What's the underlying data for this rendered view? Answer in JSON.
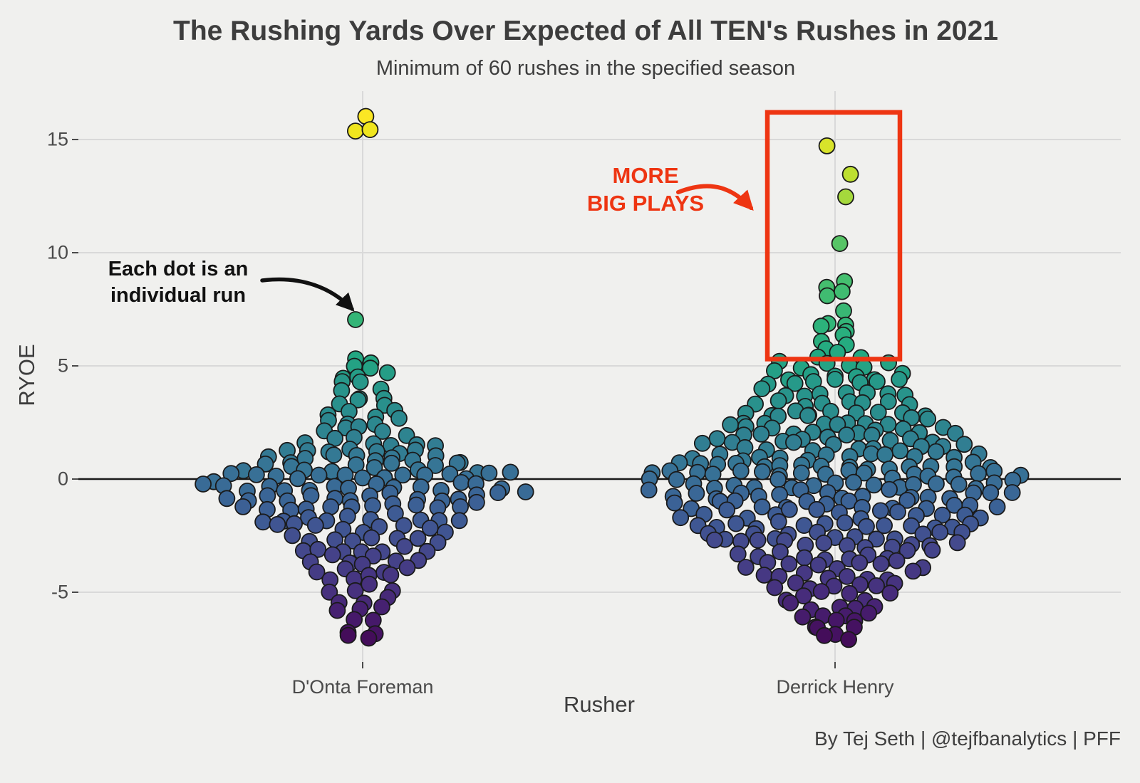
{
  "header": {
    "title": "The Rushing Yards Over Expected of All TEN's Rushes in 2021",
    "subtitle": "Minimum of 60 rushes in the specified season"
  },
  "caption": "By Tej Seth | @tejfbanalytics | PFF",
  "annotations": {
    "dot_note_line1": "Each dot is an",
    "dot_note_line2": "individual run",
    "big_plays_line1": "MORE",
    "big_plays_line2": "BIG PLAYS"
  },
  "axes": {
    "y_label": "RYOE",
    "x_label": "Rusher",
    "y_ticks": [
      "15",
      "10",
      "5",
      "0",
      "-5"
    ],
    "x_categories": [
      "D'Onta Foreman",
      "Derrick Henry"
    ]
  },
  "colors": {
    "background": "#f0f0ee",
    "gridline": "#d9d9d9",
    "zero_line": "#1a1a1a",
    "dot_stroke": "#1a1a1a",
    "accent_red": "#ee3512",
    "title_text": "#3d3d3d",
    "tick_text": "#4a4a4a",
    "annotation_black": "#111111",
    "viridis_stops": [
      [
        -7.3,
        "#440a57"
      ],
      [
        -6.2,
        "#46196a"
      ],
      [
        -5.0,
        "#472f7d"
      ],
      [
        -4.0,
        "#453b85"
      ],
      [
        -3.0,
        "#44498c"
      ],
      [
        -2.0,
        "#3f5793"
      ],
      [
        -1.0,
        "#3b6396"
      ],
      [
        0.0,
        "#386f96"
      ],
      [
        1.0,
        "#337a94"
      ],
      [
        2.0,
        "#2e8390"
      ],
      [
        3.0,
        "#2a8d8d"
      ],
      [
        4.0,
        "#27968a"
      ],
      [
        4.7,
        "#24a085"
      ],
      [
        5.5,
        "#23a981"
      ],
      [
        6.5,
        "#2bb17c"
      ],
      [
        7.5,
        "#3ab873"
      ],
      [
        8.6,
        "#45bf6f"
      ],
      [
        10.2,
        "#57c466"
      ],
      [
        12.4,
        "#a5d93c"
      ],
      [
        13.5,
        "#bddf30"
      ],
      [
        14.6,
        "#d8e32a"
      ],
      [
        15.5,
        "#f1e51d"
      ],
      [
        16.1,
        "#fde725"
      ]
    ]
  },
  "chart_data": {
    "type": "scatter",
    "variant": "beeswarm",
    "title": "The Rushing Yards Over Expected of All TEN's Rushes in 2021",
    "subtitle": "Minimum of 60 rushes in the specified season",
    "xlabel": "Rusher",
    "ylabel": "RYOE",
    "ylim": [
      -8,
      16.5
    ],
    "y_gridlines": [
      15,
      10,
      5,
      0,
      -5
    ],
    "grid": true,
    "color_mapping": "viridis over RYOE value, approx domain -7.3 to 16.1",
    "series": [
      {
        "name": "D'Onta Foreman",
        "bins": [
          [
            16.0,
            1
          ],
          [
            15.45,
            2
          ],
          [
            7.1,
            1
          ],
          [
            5.3,
            2
          ],
          [
            4.9,
            2
          ],
          [
            4.5,
            3
          ],
          [
            4.1,
            3
          ],
          [
            3.7,
            3
          ],
          [
            3.3,
            3
          ],
          [
            2.9,
            4
          ],
          [
            2.5,
            4
          ],
          [
            2.1,
            5
          ],
          [
            1.7,
            6
          ],
          [
            1.3,
            8
          ],
          [
            0.9,
            10
          ],
          [
            0.5,
            12
          ],
          [
            0.1,
            15
          ],
          [
            -0.35,
            16
          ],
          [
            -0.8,
            14
          ],
          [
            -1.25,
            12
          ],
          [
            -1.7,
            10
          ],
          [
            -2.15,
            9
          ],
          [
            -2.6,
            8
          ],
          [
            -3.05,
            7
          ],
          [
            -3.5,
            6
          ],
          [
            -3.95,
            5
          ],
          [
            -4.4,
            4
          ],
          [
            -4.85,
            4
          ],
          [
            -5.3,
            3
          ],
          [
            -5.75,
            3
          ],
          [
            -6.2,
            2
          ],
          [
            -6.65,
            2
          ],
          [
            -7.1,
            2
          ]
        ]
      },
      {
        "name": "Derrick Henry",
        "bins": [
          [
            14.6,
            1
          ],
          [
            13.5,
            1
          ],
          [
            12.4,
            1
          ],
          [
            10.2,
            1
          ],
          [
            8.6,
            2
          ],
          [
            8.1,
            2
          ],
          [
            7.4,
            1
          ],
          [
            7.0,
            2
          ],
          [
            6.6,
            2
          ],
          [
            6.2,
            2
          ],
          [
            5.8,
            2
          ],
          [
            5.4,
            3
          ],
          [
            5.0,
            6
          ],
          [
            4.6,
            7
          ],
          [
            4.2,
            7
          ],
          [
            3.8,
            8
          ],
          [
            3.4,
            8
          ],
          [
            3.0,
            9
          ],
          [
            2.6,
            10
          ],
          [
            2.2,
            11
          ],
          [
            1.8,
            12
          ],
          [
            1.4,
            13
          ],
          [
            1.0,
            14
          ],
          [
            0.6,
            16
          ],
          [
            0.2,
            18
          ],
          [
            -0.2,
            19
          ],
          [
            -0.65,
            18
          ],
          [
            -1.1,
            16
          ],
          [
            -1.55,
            15
          ],
          [
            -2.0,
            14
          ],
          [
            -2.45,
            13
          ],
          [
            -2.9,
            12
          ],
          [
            -3.35,
            10
          ],
          [
            -3.8,
            9
          ],
          [
            -4.25,
            8
          ],
          [
            -4.7,
            7
          ],
          [
            -5.15,
            6
          ],
          [
            -5.6,
            5
          ],
          [
            -6.05,
            4
          ],
          [
            -6.4,
            3
          ],
          [
            -6.75,
            3
          ],
          [
            -7.1,
            2
          ]
        ]
      }
    ],
    "highlight_box": {
      "series": "Derrick Henry",
      "label": "MORE BIG PLAYS",
      "y_min": 5.3,
      "y_max": 16.2
    }
  }
}
